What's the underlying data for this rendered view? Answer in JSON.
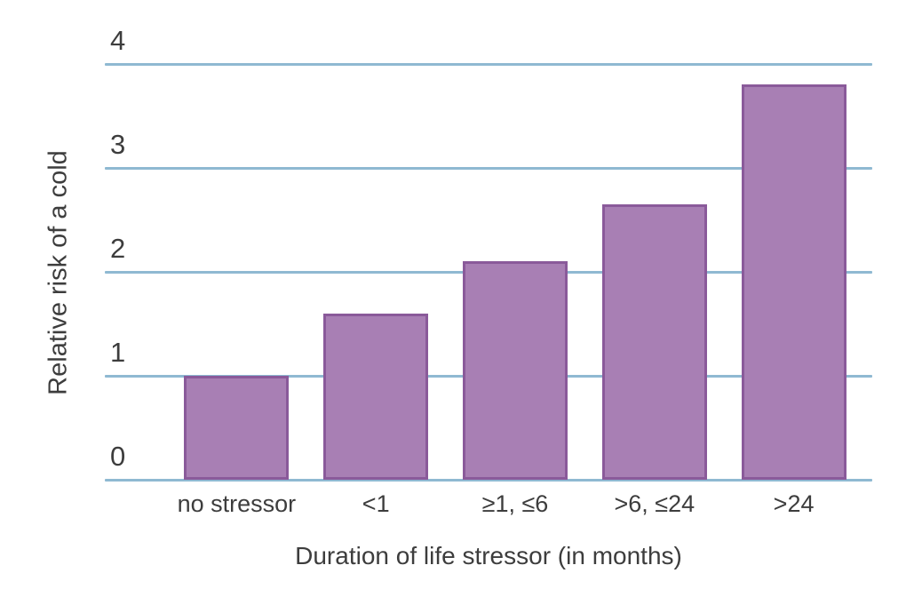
{
  "chart_data": {
    "type": "bar",
    "categories": [
      "no stressor",
      "<1",
      "≥1, ≤6",
      ">6, ≤24",
      ">24"
    ],
    "values": [
      1.0,
      1.6,
      2.1,
      2.65,
      3.8
    ],
    "title": "",
    "xlabel": "Duration of life stressor (in months)",
    "ylabel": "Relative risk of a cold",
    "ylim": [
      0,
      4
    ],
    "yticks": [
      0,
      1,
      2,
      3,
      4
    ],
    "grid": true,
    "legend": "none",
    "colors": {
      "bar_fill": "#a87fb4",
      "bar_border": "#8a5a9a",
      "gridline": "#8fb9d2",
      "text": "#3d3d3d",
      "background": "#ffffff"
    }
  }
}
